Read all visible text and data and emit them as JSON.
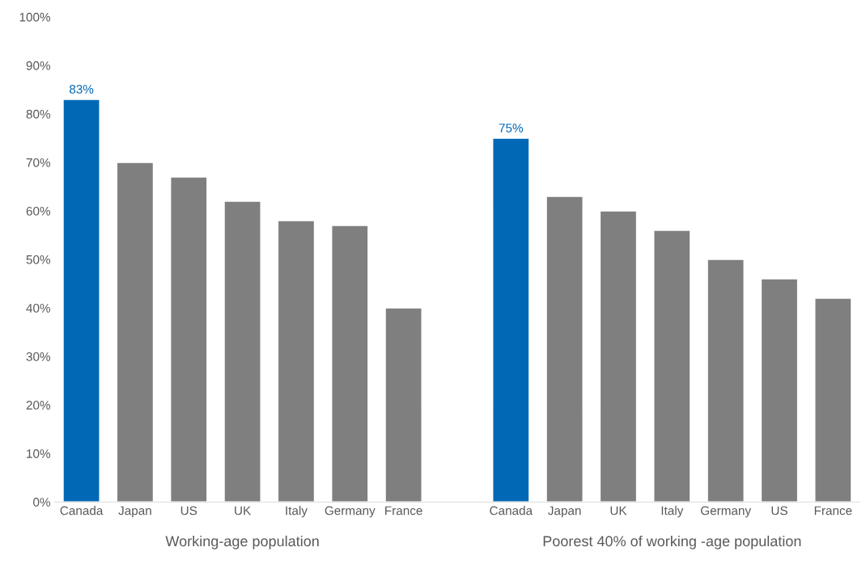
{
  "chart_data": {
    "type": "bar",
    "categories": [
      "Canada",
      "Japan",
      "US",
      "UK",
      "Italy",
      "Germany",
      "France",
      null,
      "Canada",
      "Japan",
      "UK",
      "Italy",
      "Germany",
      "US",
      "France"
    ],
    "values": [
      83,
      70,
      67,
      62,
      58,
      57,
      40,
      null,
      75,
      63,
      60,
      56,
      50,
      46,
      42
    ],
    "colors": [
      "#0068b5",
      "#7f7f7f",
      "#7f7f7f",
      "#7f7f7f",
      "#7f7f7f",
      "#7f7f7f",
      "#7f7f7f",
      "#7f7f7f",
      "#0068b5",
      "#7f7f7f",
      "#7f7f7f",
      "#7f7f7f",
      "#7f7f7f",
      "#7f7f7f",
      "#7f7f7f"
    ],
    "value_labels": [
      "83%",
      null,
      null,
      null,
      null,
      null,
      null,
      null,
      "75%",
      null,
      null,
      null,
      null,
      null,
      null
    ],
    "ylim": [
      0,
      100
    ],
    "yticks": [
      {
        "value": 0,
        "label": "0%"
      },
      {
        "value": 10,
        "label": "10%"
      },
      {
        "value": 20,
        "label": "20%"
      },
      {
        "value": 30,
        "label": "30%"
      },
      {
        "value": 40,
        "label": "40%"
      },
      {
        "value": 50,
        "label": "50%"
      },
      {
        "value": 60,
        "label": "60%"
      },
      {
        "value": 70,
        "label": "70%"
      },
      {
        "value": 80,
        "label": "80%"
      },
      {
        "value": 90,
        "label": "90%"
      },
      {
        "value": 100,
        "label": "100%"
      }
    ],
    "annotations": [
      "Working-age population",
      "Poorest 40% of working -age population"
    ],
    "grid": false,
    "legend": false
  }
}
